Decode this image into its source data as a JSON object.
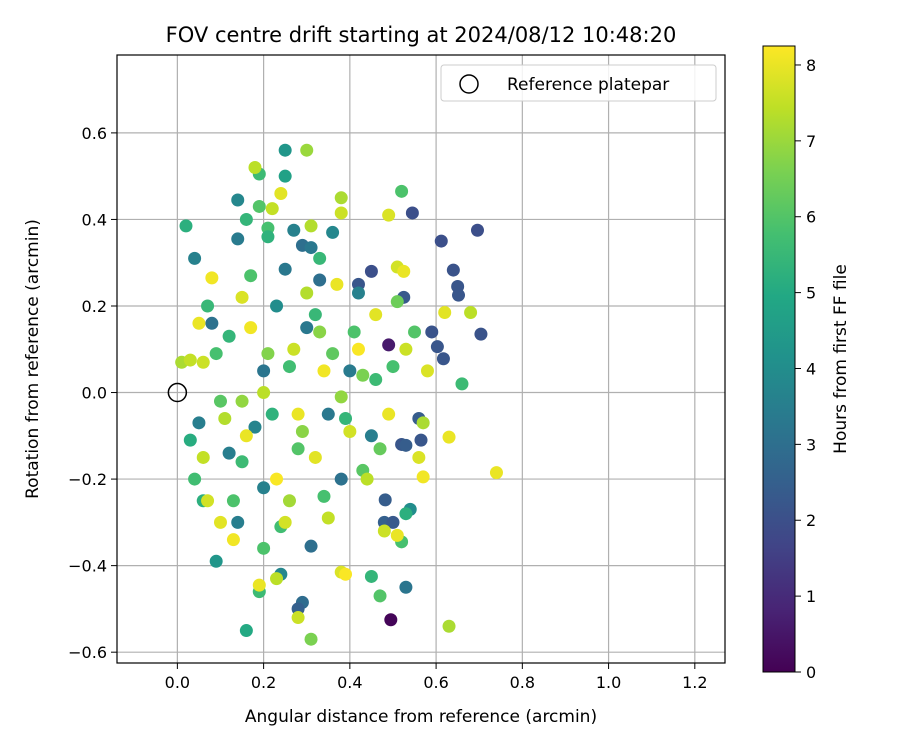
{
  "chart_data": {
    "type": "scatter",
    "title": "FOV centre drift starting at 2024/08/12 10:48:20",
    "xlabel": "Angular distance from reference (arcmin)",
    "ylabel": "Rotation from reference (arcmin)",
    "xlim": [
      -0.14,
      1.27
    ],
    "ylim": [
      -0.625,
      0.78
    ],
    "xticks": [
      0.0,
      0.2,
      0.4,
      0.6,
      0.8,
      1.0,
      1.2
    ],
    "yticks": [
      -0.6,
      -0.4,
      -0.2,
      0.0,
      0.2,
      0.4,
      0.6
    ],
    "xtick_labels": [
      "0.0",
      "0.2",
      "0.4",
      "0.6",
      "0.8",
      "1.0",
      "1.2"
    ],
    "ytick_labels": [
      "−0.6",
      "−0.4",
      "−0.2",
      "0.0",
      "0.2",
      "0.4",
      "0.6"
    ],
    "grid": true,
    "legend": {
      "position": "top-right",
      "entries": [
        "Reference platepar"
      ]
    },
    "reference_point": {
      "x": 0.0,
      "y": 0.0,
      "marker": "open-circle"
    },
    "colorbar": {
      "label": "Hours from first FF file",
      "colormap": "viridis",
      "min": 0,
      "max": 8.25,
      "ticks": [
        0,
        1,
        2,
        3,
        4,
        5,
        6,
        7,
        8
      ],
      "tick_labels": [
        "0",
        "1",
        "2",
        "3",
        "4",
        "5",
        "6",
        "7",
        "8"
      ]
    },
    "points": [
      {
        "x": 0.495,
        "y": -0.525,
        "h": 0.1
      },
      {
        "x": 0.696,
        "y": 0.375,
        "h": 2.0
      },
      {
        "x": 0.704,
        "y": 0.135,
        "h": 2.1
      },
      {
        "x": 0.65,
        "y": 0.245,
        "h": 2.2
      },
      {
        "x": 0.652,
        "y": 0.225,
        "h": 2.2
      },
      {
        "x": 0.64,
        "y": 0.283,
        "h": 2.1
      },
      {
        "x": 0.612,
        "y": 0.35,
        "h": 2.0
      },
      {
        "x": 0.617,
        "y": 0.078,
        "h": 2.2
      },
      {
        "x": 0.59,
        "y": 0.14,
        "h": 2.1
      },
      {
        "x": 0.603,
        "y": 0.106,
        "h": 2.2
      },
      {
        "x": 0.545,
        "y": 0.415,
        "h": 2.0
      },
      {
        "x": 0.525,
        "y": 0.22,
        "h": 2.3
      },
      {
        "x": 0.52,
        "y": -0.12,
        "h": 2.2
      },
      {
        "x": 0.53,
        "y": -0.122,
        "h": 2.4
      },
      {
        "x": 0.56,
        "y": -0.06,
        "h": 2.4
      },
      {
        "x": 0.565,
        "y": -0.11,
        "h": 2.2
      },
      {
        "x": 0.482,
        "y": -0.248,
        "h": 2.4
      },
      {
        "x": 0.49,
        "y": 0.11,
        "h": 0.6
      },
      {
        "x": 0.45,
        "y": 0.28,
        "h": 2.0
      },
      {
        "x": 0.42,
        "y": 0.25,
        "h": 2.2
      },
      {
        "x": 0.53,
        "y": -0.45,
        "h": 3.2
      },
      {
        "x": 0.29,
        "y": -0.485,
        "h": 2.9
      },
      {
        "x": 0.28,
        "y": -0.5,
        "h": 2.5
      },
      {
        "x": 0.31,
        "y": -0.355,
        "h": 3.0
      },
      {
        "x": 0.48,
        "y": -0.3,
        "h": 2.5
      },
      {
        "x": 0.5,
        "y": -0.3,
        "h": 2.3
      },
      {
        "x": 0.25,
        "y": 0.56,
        "h": 4.3
      },
      {
        "x": 0.25,
        "y": 0.5,
        "h": 4.7
      },
      {
        "x": 0.29,
        "y": 0.34,
        "h": 3.0
      },
      {
        "x": 0.31,
        "y": 0.335,
        "h": 3.3
      },
      {
        "x": 0.33,
        "y": 0.26,
        "h": 3.0
      },
      {
        "x": 0.14,
        "y": 0.445,
        "h": 3.8
      },
      {
        "x": 0.14,
        "y": 0.355,
        "h": 3.4
      },
      {
        "x": 0.25,
        "y": 0.285,
        "h": 3.3
      },
      {
        "x": 0.27,
        "y": 0.375,
        "h": 3.6
      },
      {
        "x": 0.08,
        "y": 0.16,
        "h": 3.1
      },
      {
        "x": 0.12,
        "y": -0.14,
        "h": 3.5
      },
      {
        "x": 0.09,
        "y": -0.39,
        "h": 4.3
      },
      {
        "x": 0.14,
        "y": -0.3,
        "h": 3.5
      },
      {
        "x": 0.2,
        "y": -0.22,
        "h": 3.6
      },
      {
        "x": 0.24,
        "y": -0.42,
        "h": 3.8
      },
      {
        "x": 0.36,
        "y": 0.37,
        "h": 3.8
      },
      {
        "x": 0.42,
        "y": 0.23,
        "h": 3.6
      },
      {
        "x": 0.54,
        "y": -0.27,
        "h": 4.0
      },
      {
        "x": 0.04,
        "y": 0.31,
        "h": 3.6
      },
      {
        "x": 0.05,
        "y": -0.07,
        "h": 3.5
      },
      {
        "x": 0.2,
        "y": 0.05,
        "h": 3.2
      },
      {
        "x": 0.35,
        "y": -0.05,
        "h": 3.3
      },
      {
        "x": 0.4,
        "y": 0.05,
        "h": 3.4
      },
      {
        "x": 0.45,
        "y": -0.1,
        "h": 3.5
      },
      {
        "x": 0.38,
        "y": -0.2,
        "h": 3.1
      },
      {
        "x": 0.3,
        "y": 0.15,
        "h": 3.3
      },
      {
        "x": 0.18,
        "y": -0.08,
        "h": 3.7
      },
      {
        "x": 0.23,
        "y": 0.2,
        "h": 4.0
      },
      {
        "x": 0.02,
        "y": 0.385,
        "h": 5.2
      },
      {
        "x": 0.19,
        "y": 0.505,
        "h": 5.6
      },
      {
        "x": 0.19,
        "y": 0.43,
        "h": 6.0
      },
      {
        "x": 0.16,
        "y": 0.4,
        "h": 5.4
      },
      {
        "x": 0.21,
        "y": 0.38,
        "h": 5.8
      },
      {
        "x": 0.21,
        "y": 0.36,
        "h": 5.3
      },
      {
        "x": 0.52,
        "y": 0.465,
        "h": 5.9
      },
      {
        "x": 0.66,
        "y": 0.02,
        "h": 5.6
      },
      {
        "x": 0.53,
        "y": -0.28,
        "h": 5.2
      },
      {
        "x": 0.52,
        "y": -0.345,
        "h": 5.8
      },
      {
        "x": 0.47,
        "y": -0.47,
        "h": 6.0
      },
      {
        "x": 0.45,
        "y": -0.425,
        "h": 5.4
      },
      {
        "x": 0.16,
        "y": -0.55,
        "h": 5.0
      },
      {
        "x": 0.19,
        "y": -0.46,
        "h": 5.6
      },
      {
        "x": 0.2,
        "y": -0.36,
        "h": 5.9
      },
      {
        "x": 0.31,
        "y": -0.57,
        "h": 6.6
      },
      {
        "x": 0.03,
        "y": -0.11,
        "h": 5.1
      },
      {
        "x": 0.04,
        "y": -0.2,
        "h": 5.7
      },
      {
        "x": 0.06,
        "y": -0.25,
        "h": 5.2
      },
      {
        "x": 0.07,
        "y": 0.2,
        "h": 5.5
      },
      {
        "x": 0.09,
        "y": 0.09,
        "h": 5.8
      },
      {
        "x": 0.1,
        "y": -0.02,
        "h": 6.1
      },
      {
        "x": 0.12,
        "y": 0.13,
        "h": 5.4
      },
      {
        "x": 0.15,
        "y": -0.16,
        "h": 5.6
      },
      {
        "x": 0.17,
        "y": 0.27,
        "h": 5.9
      },
      {
        "x": 0.22,
        "y": -0.05,
        "h": 5.3
      },
      {
        "x": 0.26,
        "y": 0.06,
        "h": 5.7
      },
      {
        "x": 0.28,
        "y": -0.13,
        "h": 6.0
      },
      {
        "x": 0.32,
        "y": 0.18,
        "h": 5.5
      },
      {
        "x": 0.34,
        "y": -0.24,
        "h": 5.8
      },
      {
        "x": 0.36,
        "y": 0.09,
        "h": 6.2
      },
      {
        "x": 0.39,
        "y": -0.06,
        "h": 5.4
      },
      {
        "x": 0.41,
        "y": 0.14,
        "h": 5.9
      },
      {
        "x": 0.43,
        "y": -0.18,
        "h": 6.1
      },
      {
        "x": 0.46,
        "y": 0.03,
        "h": 5.6
      },
      {
        "x": 0.47,
        "y": -0.13,
        "h": 6.3
      },
      {
        "x": 0.5,
        "y": 0.06,
        "h": 5.8
      },
      {
        "x": 0.51,
        "y": 0.21,
        "h": 6.4
      },
      {
        "x": 0.55,
        "y": 0.14,
        "h": 6.0
      },
      {
        "x": 0.24,
        "y": -0.31,
        "h": 5.7
      },
      {
        "x": 0.13,
        "y": -0.25,
        "h": 5.9
      },
      {
        "x": 0.33,
        "y": 0.31,
        "h": 5.5
      },
      {
        "x": 0.3,
        "y": 0.56,
        "h": 7.0
      },
      {
        "x": 0.18,
        "y": 0.52,
        "h": 7.4
      },
      {
        "x": 0.24,
        "y": 0.46,
        "h": 7.9
      },
      {
        "x": 0.22,
        "y": 0.425,
        "h": 7.5
      },
      {
        "x": 0.31,
        "y": 0.385,
        "h": 7.3
      },
      {
        "x": 0.38,
        "y": 0.45,
        "h": 7.2
      },
      {
        "x": 0.38,
        "y": 0.415,
        "h": 7.6
      },
      {
        "x": 0.49,
        "y": 0.41,
        "h": 7.8
      },
      {
        "x": 0.51,
        "y": 0.29,
        "h": 7.7
      },
      {
        "x": 0.525,
        "y": 0.28,
        "h": 8.0
      },
      {
        "x": 0.62,
        "y": 0.185,
        "h": 7.9
      },
      {
        "x": 0.68,
        "y": 0.185,
        "h": 7.4
      },
      {
        "x": 0.58,
        "y": 0.05,
        "h": 7.8
      },
      {
        "x": 0.57,
        "y": -0.07,
        "h": 7.2
      },
      {
        "x": 0.57,
        "y": -0.195,
        "h": 8.1
      },
      {
        "x": 0.63,
        "y": -0.103,
        "h": 8.0
      },
      {
        "x": 0.74,
        "y": -0.185,
        "h": 8.0
      },
      {
        "x": 0.63,
        "y": -0.54,
        "h": 7.2
      },
      {
        "x": 0.48,
        "y": -0.32,
        "h": 7.6
      },
      {
        "x": 0.51,
        "y": -0.33,
        "h": 8.0
      },
      {
        "x": 0.38,
        "y": -0.415,
        "h": 7.8
      },
      {
        "x": 0.39,
        "y": -0.42,
        "h": 8.2
      },
      {
        "x": 0.28,
        "y": -0.52,
        "h": 7.6
      },
      {
        "x": 0.23,
        "y": -0.43,
        "h": 7.4
      },
      {
        "x": 0.19,
        "y": -0.445,
        "h": 8.0
      },
      {
        "x": 0.13,
        "y": -0.34,
        "h": 8.1
      },
      {
        "x": 0.1,
        "y": -0.3,
        "h": 7.9
      },
      {
        "x": 0.07,
        "y": -0.25,
        "h": 7.7
      },
      {
        "x": 0.05,
        "y": 0.16,
        "h": 8.0
      },
      {
        "x": 0.06,
        "y": 0.07,
        "h": 7.6
      },
      {
        "x": 0.08,
        "y": 0.265,
        "h": 8.1
      },
      {
        "x": 0.01,
        "y": 0.07,
        "h": 7.2
      },
      {
        "x": 0.03,
        "y": 0.075,
        "h": 7.5
      },
      {
        "x": 0.15,
        "y": 0.22,
        "h": 7.8
      },
      {
        "x": 0.16,
        "y": -0.1,
        "h": 8.0
      },
      {
        "x": 0.2,
        "y": 0.0,
        "h": 7.4
      },
      {
        "x": 0.23,
        "y": -0.2,
        "h": 8.2
      },
      {
        "x": 0.27,
        "y": 0.1,
        "h": 7.6
      },
      {
        "x": 0.28,
        "y": -0.05,
        "h": 8.0
      },
      {
        "x": 0.3,
        "y": 0.23,
        "h": 7.3
      },
      {
        "x": 0.32,
        "y": -0.15,
        "h": 7.9
      },
      {
        "x": 0.34,
        "y": 0.05,
        "h": 8.1
      },
      {
        "x": 0.35,
        "y": -0.29,
        "h": 7.5
      },
      {
        "x": 0.37,
        "y": 0.25,
        "h": 8.0
      },
      {
        "x": 0.4,
        "y": -0.09,
        "h": 7.7
      },
      {
        "x": 0.42,
        "y": 0.1,
        "h": 8.2
      },
      {
        "x": 0.44,
        "y": -0.2,
        "h": 7.4
      },
      {
        "x": 0.46,
        "y": 0.18,
        "h": 7.9
      },
      {
        "x": 0.49,
        "y": -0.05,
        "h": 8.0
      },
      {
        "x": 0.53,
        "y": 0.1,
        "h": 7.6
      },
      {
        "x": 0.56,
        "y": -0.15,
        "h": 7.8
      },
      {
        "x": 0.26,
        "y": -0.25,
        "h": 7.1
      },
      {
        "x": 0.11,
        "y": -0.06,
        "h": 7.3
      },
      {
        "x": 0.17,
        "y": 0.15,
        "h": 8.1
      },
      {
        "x": 0.25,
        "y": -0.3,
        "h": 7.7
      },
      {
        "x": 0.06,
        "y": -0.15,
        "h": 7.5
      },
      {
        "x": 0.15,
        "y": -0.02,
        "h": 6.9
      },
      {
        "x": 0.33,
        "y": 0.14,
        "h": 6.8
      },
      {
        "x": 0.21,
        "y": 0.09,
        "h": 6.7
      },
      {
        "x": 0.38,
        "y": -0.01,
        "h": 6.9
      },
      {
        "x": 0.43,
        "y": 0.04,
        "h": 6.6
      },
      {
        "x": 0.29,
        "y": -0.09,
        "h": 6.8
      }
    ]
  }
}
